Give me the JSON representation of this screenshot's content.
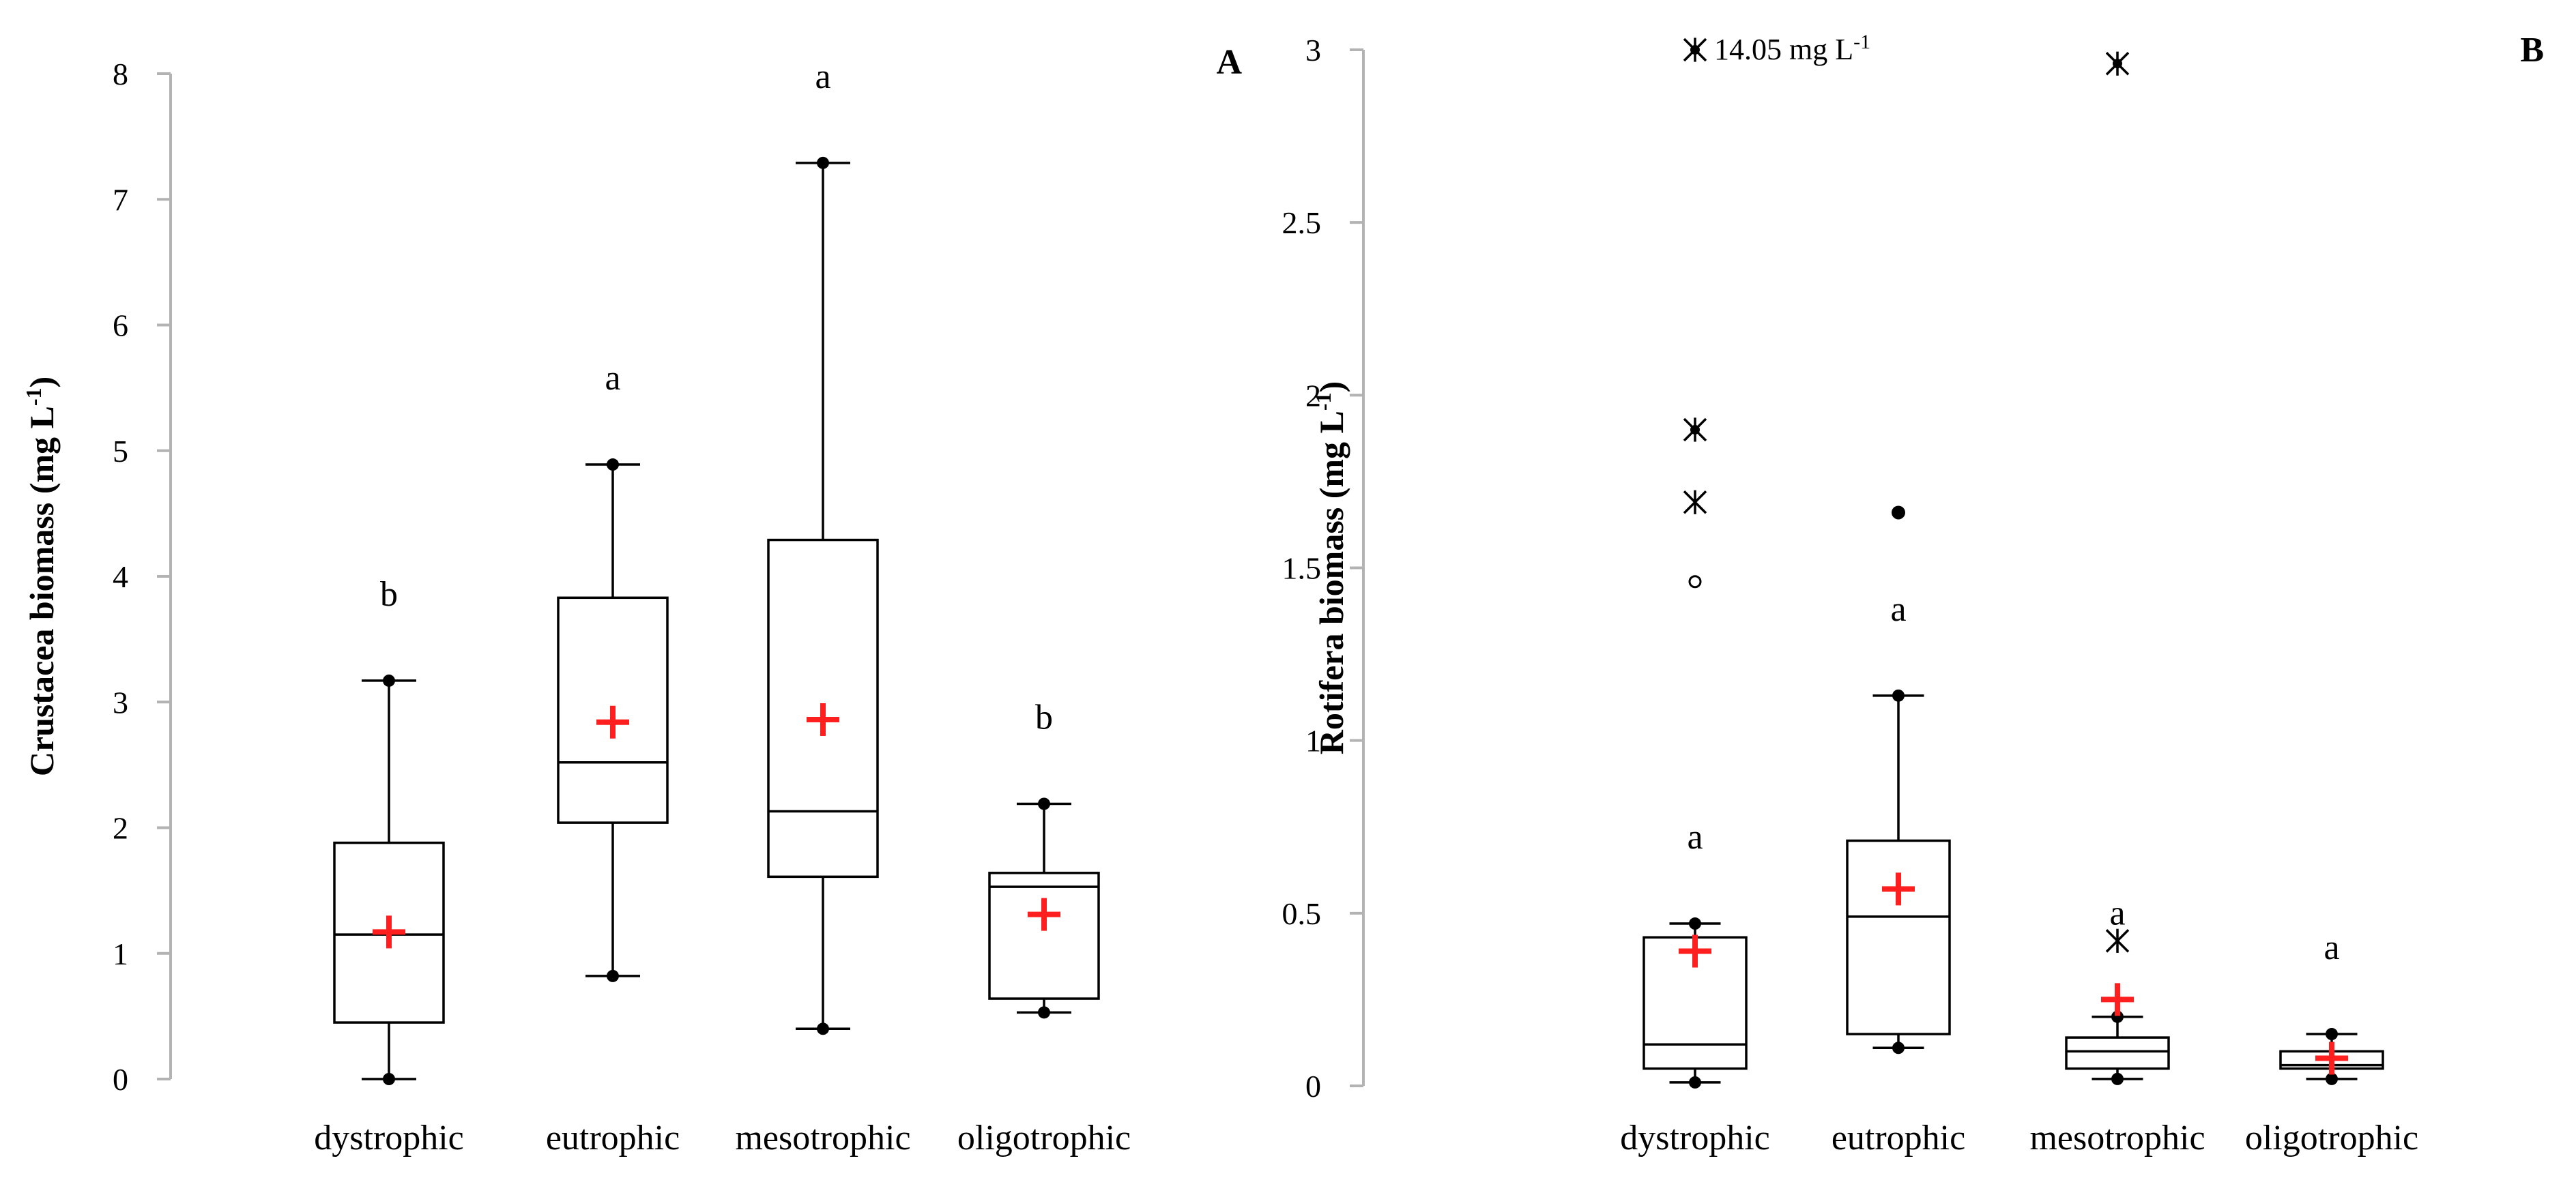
{
  "chart_data": [
    {
      "type": "boxplot",
      "panel_label": "A",
      "title": "",
      "xlabel": "",
      "ylabel": "Crustacea biomass (mg L",
      "ylabel_sup": "-1",
      "ylabel_end": ")",
      "ylim": [
        0,
        8
      ],
      "yticks": [
        0,
        1,
        2,
        3,
        4,
        5,
        6,
        7,
        8
      ],
      "categories": [
        "dystrophic",
        "eutrophic",
        "mesotrophic",
        "oligotrophic"
      ],
      "boxes": [
        {
          "category": "dystrophic",
          "min": 0.0,
          "q1": 0.45,
          "median": 1.15,
          "q3": 1.88,
          "max": 3.17,
          "mean": 1.17,
          "letter": "b",
          "outliers": []
        },
        {
          "category": "eutrophic",
          "min": 0.82,
          "q1": 2.04,
          "median": 2.52,
          "q3": 3.83,
          "max": 4.89,
          "mean": 2.84,
          "letter": "a",
          "outliers": []
        },
        {
          "category": "mesotrophic",
          "min": 0.4,
          "q1": 1.61,
          "median": 2.13,
          "q3": 4.29,
          "max": 7.29,
          "mean": 2.86,
          "letter": "a",
          "outliers": []
        },
        {
          "category": "oligotrophic",
          "min": 0.53,
          "q1": 0.64,
          "median": 1.53,
          "q3": 1.64,
          "max": 2.19,
          "mean": 1.31,
          "letter": "b",
          "outliers": []
        }
      ]
    },
    {
      "type": "boxplot",
      "panel_label": "B",
      "title": "",
      "xlabel": "",
      "ylabel": "Rotifera biomass (mg L",
      "ylabel_sup": "-1",
      "ylabel_end": ")",
      "ylim": [
        0,
        3
      ],
      "yticks": [
        0,
        0.5,
        1,
        1.5,
        2,
        2.5,
        3
      ],
      "categories": [
        "dystrophic",
        "eutrophic",
        "mesotrophic",
        "oligotrophic"
      ],
      "annotation": {
        "value": "14.05 mg L",
        "sup": "-1",
        "category": "dystrophic",
        "y": 3.0
      },
      "boxes": [
        {
          "category": "dystrophic",
          "min": 0.01,
          "q1": 0.05,
          "median": 0.12,
          "q3": 0.43,
          "max": 0.47,
          "mean": 0.39,
          "letter": "a",
          "outliers": [
            {
              "y": 3.0,
              "marker": "star"
            },
            {
              "y": 1.9,
              "marker": "star"
            },
            {
              "y": 1.69,
              "marker": "asterisk"
            },
            {
              "y": 1.46,
              "marker": "open"
            }
          ]
        },
        {
          "category": "eutrophic",
          "min": 0.11,
          "q1": 0.15,
          "median": 0.49,
          "q3": 0.71,
          "max": 1.13,
          "mean": 0.57,
          "letter": "a",
          "outliers": [
            {
              "y": 1.66,
              "marker": "dot"
            }
          ]
        },
        {
          "category": "mesotrophic",
          "min": 0.02,
          "q1": 0.05,
          "median": 0.1,
          "q3": 0.14,
          "max": 0.2,
          "mean": 0.25,
          "letter": "a",
          "outliers": [
            {
              "y": 2.96,
              "marker": "star"
            },
            {
              "y": 0.42,
              "marker": "asterisk"
            }
          ]
        },
        {
          "category": "oligotrophic",
          "min": 0.02,
          "q1": 0.05,
          "median": 0.06,
          "q3": 0.1,
          "max": 0.15,
          "mean": 0.08,
          "letter": "a",
          "outliers": []
        }
      ]
    }
  ]
}
